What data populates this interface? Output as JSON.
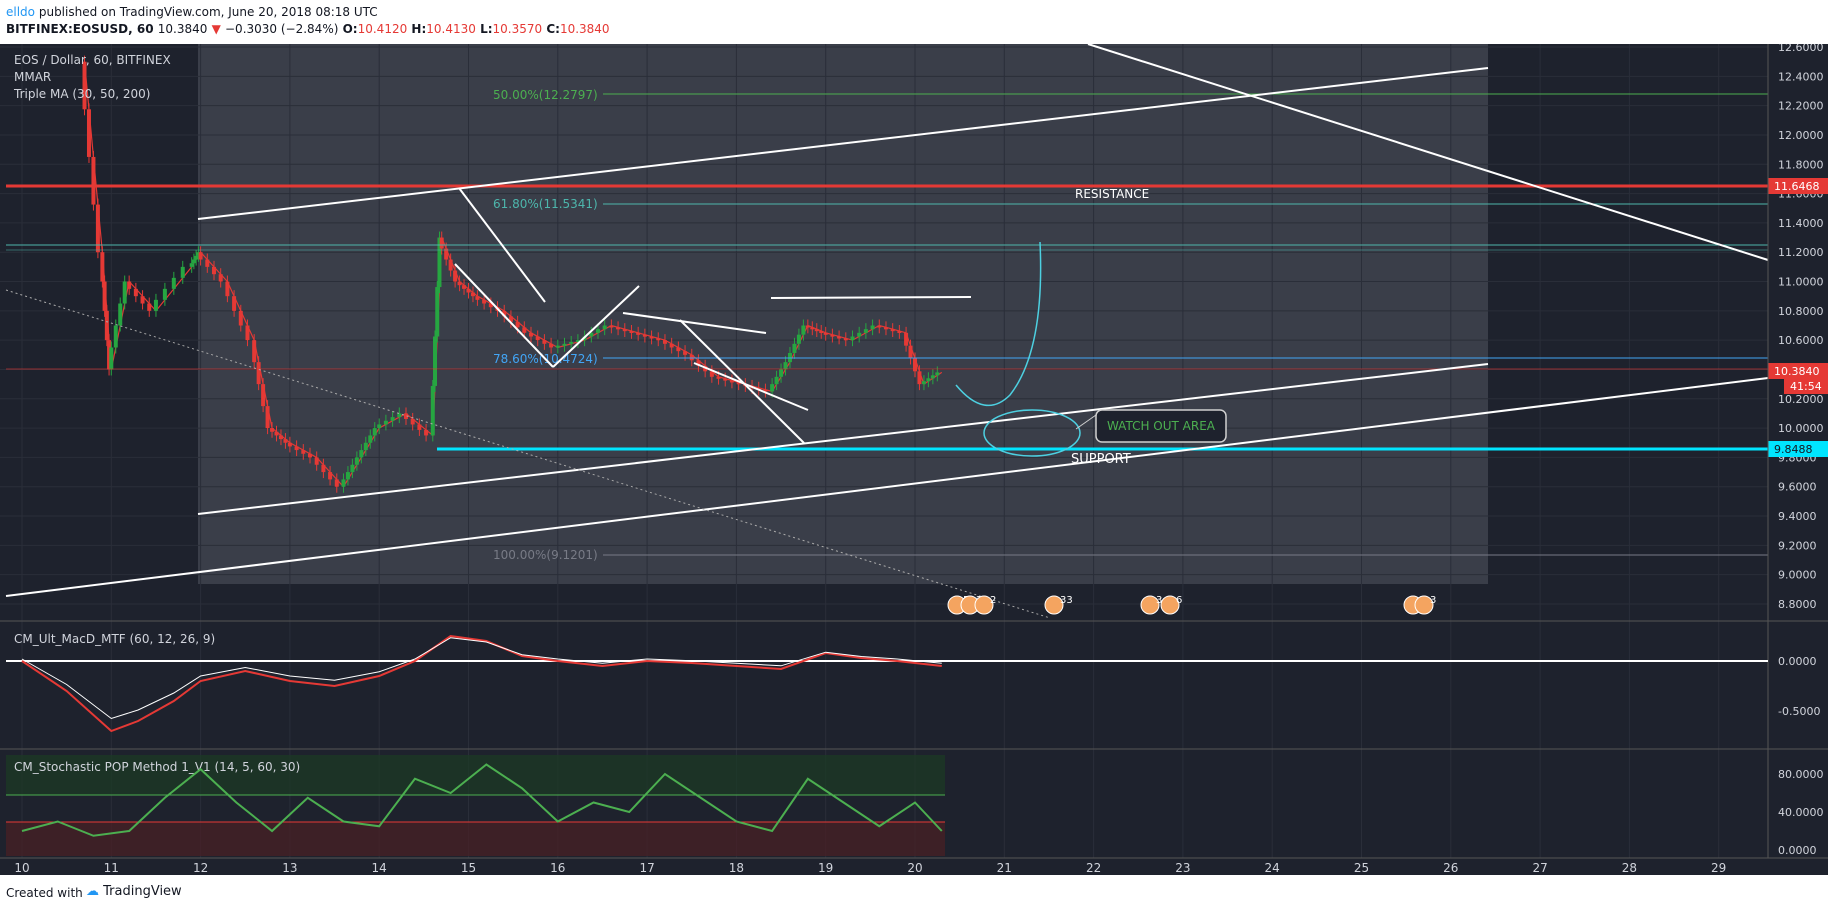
{
  "header": {
    "author": "elldo",
    "published": "published on TradingView.com, June 20, 2018 08:18 UTC",
    "symbol": "BITFINEX:EOSUSD, 60",
    "last": "10.3840",
    "change": "−0.3030 (−2.84%)",
    "o_label": "O:",
    "o": "10.4120",
    "h_label": "H:",
    "h": "10.4130",
    "l_label": "L:",
    "l": "10.3570",
    "c_label": "C:",
    "c": "10.3840"
  },
  "legend": {
    "title": "EOS / Dollar, 60, BITFINEX",
    "line2": "MMAR",
    "line3": "Triple MA (30, 50, 200)"
  },
  "annotations": {
    "fib50": "50.00%(12.2797)",
    "fib618": "61.80%(11.5341)",
    "fib786": "78.60%(10.4724)",
    "fib100": "100.00%(9.1201)",
    "resistance": "RESISTANCE",
    "support": "SUPPORT",
    "watch_out": "WATCH OUT AREA"
  },
  "price_badges": {
    "resistance": "11.6468",
    "last": "10.3840",
    "countdown": "41:54",
    "support": "9.8488"
  },
  "event_badges": [
    "5",
    "2",
    "2",
    "33",
    "3",
    "6",
    "3",
    "3"
  ],
  "indicator1": {
    "label": "CM_Ult_MacD_MTF (60, 12, 26, 9)"
  },
  "indicator2": {
    "label": "CM_Stochastic POP Method 1_V1 (14, 5, 60, 30)"
  },
  "footer": {
    "created": "Created with",
    "brand": "TradingView"
  },
  "colors": {
    "bg": "#1e222d",
    "grid": "#363a45",
    "candle_up": "#26a641",
    "candle_down": "#e53935",
    "resistance": "#e53935",
    "support": "#00e5ff",
    "fib": "#4caf50",
    "trend": "#ffffff"
  },
  "chart_data": [
    {
      "type": "line",
      "title": "EOS / Dollar, 60, BITFINEX",
      "x_ticks": [
        "10",
        "11",
        "12",
        "13",
        "14",
        "15",
        "16",
        "17",
        "18",
        "19",
        "20",
        "21",
        "22",
        "23",
        "24",
        "25",
        "26",
        "27",
        "28",
        "29"
      ],
      "y_ticks": [
        "12.6000",
        "12.4000",
        "12.2000",
        "12.0000",
        "11.8000",
        "11.6000",
        "11.4000",
        "11.2000",
        "11.0000",
        "10.8000",
        "10.6000",
        "10.4000",
        "10.2000",
        "10.0000",
        "9.8000",
        "9.6000",
        "9.4000",
        "9.2000",
        "9.0000",
        "8.8000"
      ],
      "ylim": [
        8.67,
        12.62
      ],
      "series": [
        {
          "name": "EOSUSD",
          "x": [
            10.7,
            10.9,
            11.0,
            11.2,
            11.5,
            11.9,
            12.0,
            12.3,
            12.6,
            12.8,
            13.0,
            13.3,
            13.6,
            13.8,
            14.0,
            14.3,
            14.6,
            14.7,
            14.9,
            15.1,
            15.4,
            15.7,
            16.0,
            16.3,
            16.6,
            16.9,
            17.2,
            17.5,
            17.8,
            18.1,
            18.4,
            18.6,
            18.8,
            19.0,
            19.3,
            19.6,
            19.9,
            20.1,
            20.3
          ],
          "y": [
            12.5,
            11.2,
            10.4,
            11.0,
            10.8,
            11.1,
            11.2,
            11.0,
            10.6,
            10.0,
            9.9,
            9.8,
            9.6,
            9.8,
            10.0,
            10.1,
            9.95,
            11.3,
            11.0,
            10.9,
            10.8,
            10.65,
            10.55,
            10.6,
            10.7,
            10.65,
            10.6,
            10.5,
            10.35,
            10.3,
            10.25,
            10.45,
            10.7,
            10.65,
            10.6,
            10.7,
            10.65,
            10.3,
            10.38
          ]
        }
      ],
      "levels": [
        {
          "label": "RESISTANCE",
          "value": 11.6468
        },
        {
          "label": "SUPPORT",
          "value": 9.8488
        },
        {
          "label": "50.00%",
          "value": 12.2797
        },
        {
          "label": "61.80%",
          "value": 11.5341
        },
        {
          "label": "78.60%",
          "value": 10.4724
        },
        {
          "label": "100.00%",
          "value": 9.1201
        }
      ]
    },
    {
      "type": "line",
      "title": "CM_Ult_MacD_MTF (60, 12, 26, 9)",
      "y_ticks": [
        "0.0000",
        "-0.5000"
      ],
      "ylim": [
        -0.8,
        0.3
      ],
      "series": [
        {
          "x": [
            10.0,
            10.5,
            11.0,
            11.3,
            11.7,
            12.0,
            12.5,
            13.0,
            13.5,
            14.0,
            14.4,
            14.8,
            15.2,
            15.6,
            16.0,
            16.5,
            17.0,
            17.5,
            18.0,
            18.5,
            19.0,
            19.4,
            19.8,
            20.3
          ],
          "y": [
            0.0,
            -0.3,
            -0.7,
            -0.6,
            -0.4,
            -0.2,
            -0.1,
            -0.2,
            -0.25,
            -0.15,
            0.0,
            0.25,
            0.2,
            0.05,
            0.0,
            -0.05,
            0.0,
            -0.02,
            -0.05,
            -0.08,
            0.08,
            0.03,
            0.0,
            -0.05
          ]
        }
      ]
    },
    {
      "type": "line",
      "title": "CM_Stochastic POP Method 1_V1 (14, 5, 60, 30)",
      "y_ticks": [
        "80.0000",
        "40.0000",
        "0.0000"
      ],
      "ylim": [
        -5,
        100
      ],
      "series": [
        {
          "x": [
            10.0,
            10.4,
            10.8,
            11.2,
            11.6,
            12.0,
            12.4,
            12.8,
            13.2,
            13.6,
            14.0,
            14.4,
            14.8,
            15.2,
            15.6,
            16.0,
            16.4,
            16.8,
            17.2,
            17.6,
            18.0,
            18.4,
            18.8,
            19.2,
            19.6,
            20.0,
            20.3
          ],
          "y": [
            20,
            30,
            15,
            20,
            55,
            85,
            50,
            20,
            55,
            30,
            25,
            75,
            60,
            90,
            65,
            30,
            50,
            40,
            80,
            55,
            30,
            20,
            75,
            50,
            25,
            50,
            20
          ]
        }
      ]
    }
  ]
}
